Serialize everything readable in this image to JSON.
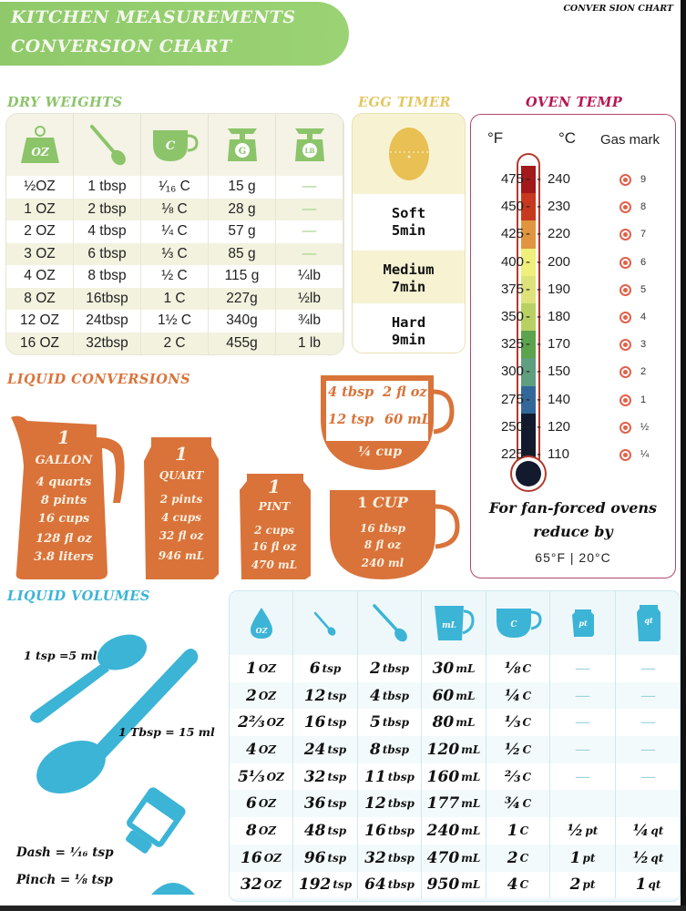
{
  "header": {
    "title_line1": "KITCHEN MEASUREMENTS",
    "title_line2": "CONVERSION CHART",
    "corner_label": "CONVER SION CHART",
    "banner_color": "#9bd374"
  },
  "dry_weights": {
    "title": "DRY WEIGHTS",
    "color": "#8cc46a",
    "icons": [
      {
        "name": "weight-oz-icon",
        "label": "OZ"
      },
      {
        "name": "spoon-icon",
        "label": ""
      },
      {
        "name": "cup-icon",
        "label": "C"
      },
      {
        "name": "scale-g-icon",
        "label": "G"
      },
      {
        "name": "scale-lb-icon",
        "label": "LB"
      }
    ],
    "rows": [
      [
        "½OZ",
        "1 tbsp",
        "¹⁄₁₆ C",
        "15 g",
        "—"
      ],
      [
        "1 OZ",
        "2 tbsp",
        "⅛ C",
        "28 g",
        "—"
      ],
      [
        "2 OZ",
        "4 tbsp",
        "¼ C",
        "57 g",
        "—"
      ],
      [
        "3 OZ",
        "6 tbsp",
        "⅓ C",
        "85 g",
        "—"
      ],
      [
        "4 OZ",
        "8 tbsp",
        "½ C",
        "115 g",
        "¼lb"
      ],
      [
        "8 OZ",
        "16tbsp",
        "1 C",
        "227g",
        "½lb"
      ],
      [
        "12 OZ",
        "24tbsp",
        "1½ C",
        "340g",
        "¾lb"
      ],
      [
        "16 OZ",
        "32tbsp",
        "2 C",
        "455g",
        "1 lb"
      ]
    ]
  },
  "egg_timer": {
    "title": "EGG TIMER",
    "color": "#e8c85a",
    "options": [
      {
        "name": "Soft",
        "time": "5min"
      },
      {
        "name": "Medium",
        "time": "7min"
      },
      {
        "name": "Hard",
        "time": "9min"
      }
    ]
  },
  "oven_temp": {
    "title": "OVEN TEMP",
    "color": "#b5174f",
    "headers": {
      "f": "°F",
      "c": "°C",
      "gas": "Gas mark"
    },
    "rows": [
      {
        "f": "475",
        "c": "240",
        "gas": "9",
        "color": "#a3181a"
      },
      {
        "f": "450",
        "c": "230",
        "gas": "8",
        "color": "#c8381e"
      },
      {
        "f": "425",
        "c": "220",
        "gas": "7",
        "color": "#e0953e"
      },
      {
        "f": "400",
        "c": "200",
        "gas": "6",
        "color": "#eef07a"
      },
      {
        "f": "375",
        "c": "190",
        "gas": "5",
        "color": "#dfe27a"
      },
      {
        "f": "350",
        "c": "180",
        "gas": "4",
        "color": "#b9d163"
      },
      {
        "f": "325",
        "c": "170",
        "gas": "3",
        "color": "#5da34d"
      },
      {
        "f": "300",
        "c": "150",
        "gas": "2",
        "color": "#5f9e7e"
      },
      {
        "f": "275",
        "c": "140",
        "gas": "1",
        "color": "#33679a"
      },
      {
        "f": "250",
        "c": "120",
        "gas": "½",
        "color": "#131a2e"
      },
      {
        "f": "225",
        "c": "110",
        "gas": "¼",
        "color": "#131a2e"
      }
    ],
    "fan_note_line1": "For fan-forced ovens",
    "fan_note_line2": "reduce by",
    "fan_values": "65°F | 20°C"
  },
  "liquid_conversions": {
    "title": "LIQUID CONVERSIONS",
    "color": "#d9733a",
    "gallon": {
      "qty": "1",
      "unit": "GALLON",
      "lines": [
        "4 quarts",
        "8 pints",
        "16 cups",
        "128 fl oz",
        "3.8 liters"
      ]
    },
    "quart": {
      "qty": "1",
      "unit": "QUART",
      "lines": [
        "2 pints",
        "4 cups",
        "32 fl oz",
        "946 mL"
      ]
    },
    "pint": {
      "qty": "1",
      "unit": "PINT",
      "lines": [
        "2 cups",
        "16 fl oz",
        "470 mL"
      ]
    },
    "cup": {
      "qty": "1",
      "unit": "CUP",
      "lines": [
        "16 tbsp",
        "8 fl oz",
        "240 ml"
      ]
    },
    "quarter_cup": {
      "cells": [
        "4 tbsp",
        "2 fl oz",
        "12 tsp",
        "60 mL"
      ],
      "label": "¼ cup"
    }
  },
  "liquid_volumes": {
    "title": "LIQUID VOLUMES",
    "color": "#3bb4d6",
    "notes": {
      "tsp": "1 tsp =5 ml",
      "tbsp": "1 Tbsp = 15 ml",
      "dash": "Dash = ¹⁄₁₆ tsp",
      "pinch": "Pinch = ⅛ tsp"
    },
    "icons": [
      {
        "name": "drop-oz-icon",
        "label": "OZ"
      },
      {
        "name": "teaspoon-icon",
        "label": ""
      },
      {
        "name": "tablespoon-icon",
        "label": ""
      },
      {
        "name": "mug-ml-icon",
        "label": "mL"
      },
      {
        "name": "cup-c-icon",
        "label": "C"
      },
      {
        "name": "pint-icon",
        "label": "pt"
      },
      {
        "name": "quart-icon",
        "label": "qt"
      }
    ],
    "rows": [
      [
        [
          "1",
          "OZ"
        ],
        [
          "6",
          "tsp"
        ],
        [
          "2",
          "tbsp"
        ],
        [
          "30",
          "mL"
        ],
        [
          "⅛",
          "C"
        ],
        [
          "—",
          ""
        ],
        [
          "—",
          ""
        ]
      ],
      [
        [
          "2",
          "OZ"
        ],
        [
          "12",
          "tsp"
        ],
        [
          "4",
          "tbsp"
        ],
        [
          "60",
          "mL"
        ],
        [
          "¼",
          "C"
        ],
        [
          "—",
          ""
        ],
        [
          "—",
          ""
        ]
      ],
      [
        [
          "2⅔",
          "OZ"
        ],
        [
          "16",
          "tsp"
        ],
        [
          "5",
          "tbsp"
        ],
        [
          "80",
          "mL"
        ],
        [
          "⅓",
          "C"
        ],
        [
          "—",
          ""
        ],
        [
          "—",
          ""
        ]
      ],
      [
        [
          "4",
          "OZ"
        ],
        [
          "24",
          "tsp"
        ],
        [
          "8",
          "tbsp"
        ],
        [
          "120",
          "mL"
        ],
        [
          "½",
          "C"
        ],
        [
          "—",
          ""
        ],
        [
          "—",
          ""
        ]
      ],
      [
        [
          "5⅓",
          "OZ"
        ],
        [
          "32",
          "tsp"
        ],
        [
          "11",
          "tbsp"
        ],
        [
          "160",
          "mL"
        ],
        [
          "⅔",
          "C"
        ],
        [
          "—",
          ""
        ],
        [
          "—",
          ""
        ]
      ],
      [
        [
          "6",
          "OZ"
        ],
        [
          "36",
          "tsp"
        ],
        [
          "12",
          "tbsp"
        ],
        [
          "177",
          "mL"
        ],
        [
          "¾",
          "C"
        ],
        [
          "",
          ""
        ],
        [
          "",
          ""
        ]
      ],
      [
        [
          "8",
          "OZ"
        ],
        [
          "48",
          "tsp"
        ],
        [
          "16",
          "tbsp"
        ],
        [
          "240",
          "mL"
        ],
        [
          "1",
          "C"
        ],
        [
          "½",
          "pt"
        ],
        [
          "¼",
          "qt"
        ]
      ],
      [
        [
          "16",
          "OZ"
        ],
        [
          "96",
          "tsp"
        ],
        [
          "32",
          "tbsp"
        ],
        [
          "470",
          "mL"
        ],
        [
          "2",
          "C"
        ],
        [
          "1",
          "pt"
        ],
        [
          "½",
          "qt"
        ]
      ],
      [
        [
          "32",
          "OZ"
        ],
        [
          "192",
          "tsp"
        ],
        [
          "64",
          "tbsp"
        ],
        [
          "950",
          "mL"
        ],
        [
          "4",
          "C"
        ],
        [
          "2",
          "pt"
        ],
        [
          "1",
          "qt"
        ]
      ]
    ]
  }
}
